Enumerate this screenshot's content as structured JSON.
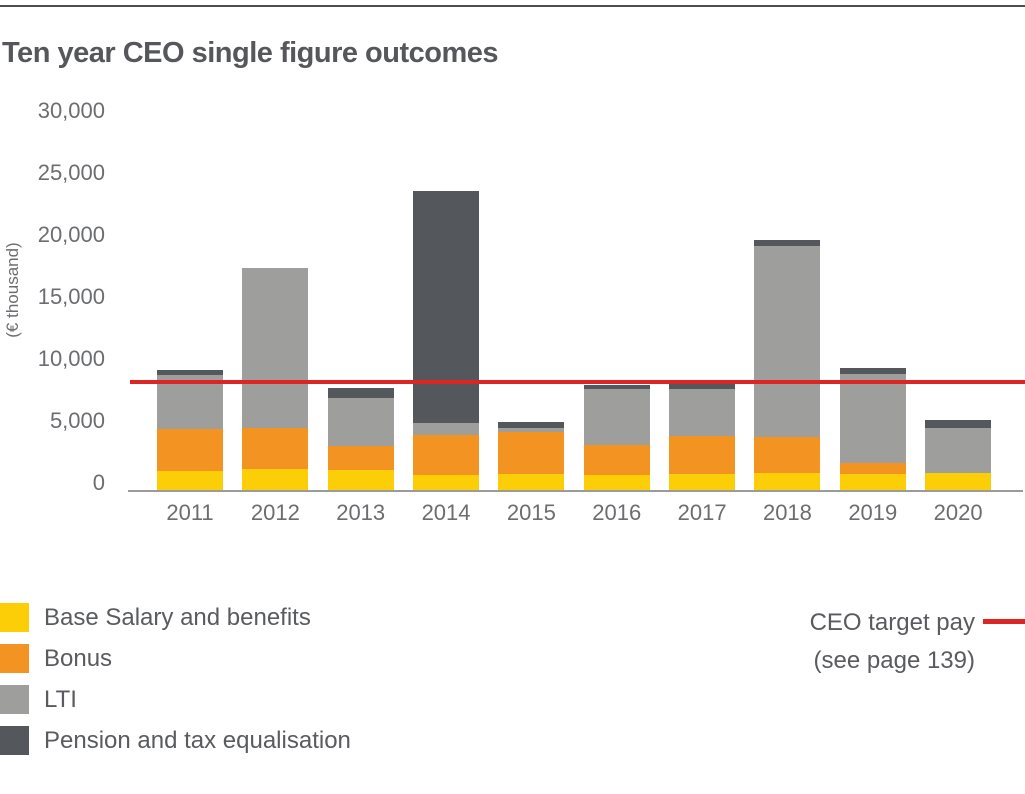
{
  "title": "Ten year CEO single figure outcomes",
  "y_axis": {
    "unit_label": "(€ thousand)",
    "ticks": [
      {
        "label": "30,000",
        "value": 30000
      },
      {
        "label": "25,000",
        "value": 25000
      },
      {
        "label": "20,000",
        "value": 20000
      },
      {
        "label": "15,000",
        "value": 15000
      },
      {
        "label": "10,000",
        "value": 10000
      },
      {
        "label": "5,000",
        "value": 5000
      },
      {
        "label": "0",
        "value": 0
      }
    ]
  },
  "chart_data": {
    "type": "bar",
    "stacked": true,
    "title": "Ten year CEO single figure outcomes",
    "ylabel": "(€ thousand)",
    "ylim": [
      0,
      30000
    ],
    "grid": false,
    "legend_position": "bottom-left",
    "categories": [
      "2011",
      "2012",
      "2013",
      "2014",
      "2015",
      "2016",
      "2017",
      "2018",
      "2019",
      "2020"
    ],
    "series": [
      {
        "name": "Base Salary and benefits",
        "color": "#fbce07",
        "values": [
          1500,
          1700,
          1600,
          1200,
          1300,
          1200,
          1300,
          1350,
          1300,
          1400
        ]
      },
      {
        "name": "Bonus",
        "color": "#f39322",
        "values": [
          3450,
          3300,
          1950,
          3250,
          3350,
          2400,
          3050,
          2950,
          900,
          0
        ]
      },
      {
        "name": "LTI",
        "color": "#9e9e9d",
        "values": [
          4300,
          12900,
          3900,
          950,
          320,
          4550,
          3800,
          15400,
          7150,
          3600
        ]
      },
      {
        "name": "Pension and tax equalisation",
        "color": "#54575b",
        "values": [
          450,
          0,
          800,
          18700,
          480,
          350,
          400,
          430,
          480,
          650
        ]
      }
    ],
    "totals": [
      9700,
      17900,
      8250,
      24100,
      5450,
      8500,
      8550,
      20130,
      9830,
      5650
    ],
    "target_line": {
      "label": "CEO target pay",
      "note": "(see page 139)",
      "value": 8750,
      "color": "#dc2626"
    }
  },
  "legend": {
    "items": [
      {
        "label": "Base Salary and benefits",
        "color": "#fbce07"
      },
      {
        "label": "Bonus",
        "color": "#f39322"
      },
      {
        "label": "LTI",
        "color": "#9e9e9d"
      },
      {
        "label": "Pension and tax equalisation",
        "color": "#54575b"
      }
    ]
  },
  "target_legend": {
    "line1": "CEO target pay",
    "line2": "(see page 139)"
  }
}
